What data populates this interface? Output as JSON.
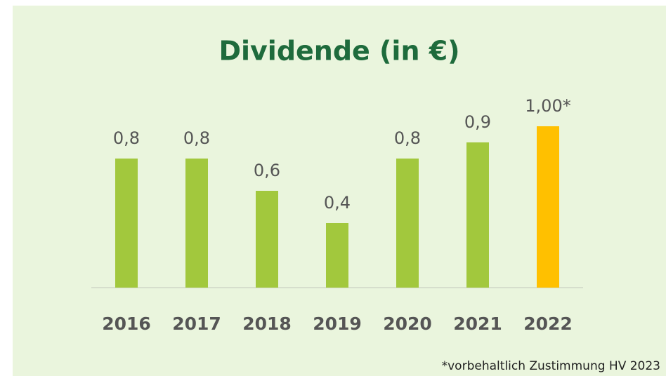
{
  "chart_data": {
    "type": "bar",
    "title": "Dividende (in €)",
    "categories": [
      "2016",
      "2017",
      "2018",
      "2019",
      "2020",
      "2021",
      "2022"
    ],
    "values": [
      0.8,
      0.8,
      0.6,
      0.4,
      0.8,
      0.9,
      1.0
    ],
    "value_labels": [
      "0,8",
      "0,8",
      "0,6",
      "0,4",
      "0,8",
      "0,9",
      "1,00*"
    ],
    "colors": [
      "#a2c83d",
      "#a2c83d",
      "#a2c83d",
      "#a2c83d",
      "#a2c83d",
      "#a2c83d",
      "#ffc000"
    ],
    "ylim": [
      0,
      1.0
    ],
    "footnote": "*vorbehaltlich Zustimmung HV 2023"
  }
}
